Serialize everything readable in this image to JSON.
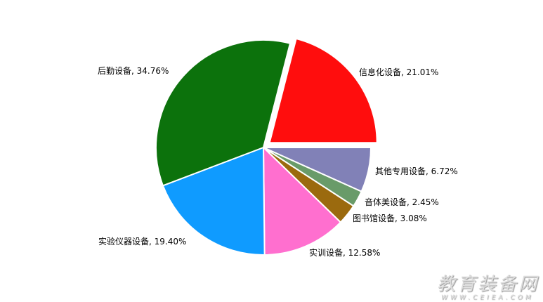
{
  "chart_data": {
    "type": "pie",
    "slices": [
      {
        "label": "信息化设备",
        "value": 21.01,
        "text": "信息化设备, 21.01%",
        "color": "#FF0D0D",
        "exploded": true
      },
      {
        "label": "其他专用设备",
        "value": 6.72,
        "text": "其他专用设备, 6.72%",
        "color": "#8181B7"
      },
      {
        "label": "音体美设备",
        "value": 2.45,
        "text": "音体美设备, 2.45%",
        "color": "#699B69"
      },
      {
        "label": "图书馆设备",
        "value": 3.08,
        "text": "图书馆设备, 3.08%",
        "color": "#9B6A0E"
      },
      {
        "label": "实训设备",
        "value": 12.58,
        "text": "实训设备, 12.58%",
        "color": "#FF6FCF"
      },
      {
        "label": "实验仪器设备",
        "value": 19.4,
        "text": "实验仪器设备, 19.40%",
        "color": "#0F9BFF"
      },
      {
        "label": "后勤设备",
        "value": 34.76,
        "text": "后勤设备, 34.76%",
        "color": "#0C720C"
      }
    ]
  },
  "watermark": {
    "title": "教育装备网",
    "url": "WWW.CEIEA.COM"
  }
}
